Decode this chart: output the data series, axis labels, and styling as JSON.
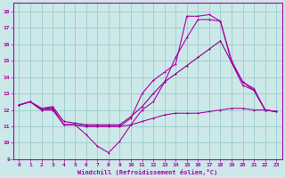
{
  "xlabel": "Windchill (Refroidissement éolien,°C)",
  "background_color": "#cce8e8",
  "line_color1": "#aa00aa",
  "line_color2": "#880088",
  "grid_color": "#99cccc",
  "x": [
    0,
    1,
    2,
    3,
    4,
    5,
    6,
    7,
    8,
    9,
    10,
    11,
    12,
    13,
    14,
    15,
    16,
    17,
    18,
    19,
    20,
    21,
    22,
    23
  ],
  "series1": [
    12.3,
    12.5,
    12.0,
    12.0,
    11.1,
    11.1,
    10.5,
    9.8,
    9.4,
    10.1,
    11.1,
    11.3,
    11.5,
    11.7,
    11.8,
    11.8,
    11.8,
    11.9,
    12.0,
    12.1,
    12.1,
    12.0,
    12.0,
    11.9
  ],
  "series2": [
    12.3,
    12.5,
    12.0,
    12.1,
    11.1,
    11.1,
    11.0,
    11.0,
    11.0,
    11.0,
    11.1,
    12.0,
    12.5,
    13.7,
    15.2,
    16.4,
    17.5,
    17.5,
    17.4,
    14.9,
    13.5,
    13.2,
    12.0,
    11.9
  ],
  "series3": [
    12.3,
    12.5,
    12.1,
    12.2,
    11.3,
    11.2,
    11.1,
    11.1,
    11.1,
    11.1,
    11.6,
    12.2,
    13.0,
    13.7,
    14.2,
    14.7,
    15.2,
    15.7,
    16.2,
    14.9,
    13.7,
    13.2,
    12.0,
    11.9
  ],
  "series4": [
    12.3,
    12.5,
    12.1,
    12.1,
    11.1,
    11.1,
    11.0,
    11.0,
    11.0,
    11.0,
    11.5,
    13.0,
    13.8,
    14.3,
    14.8,
    17.7,
    17.7,
    17.8,
    17.4,
    15.0,
    13.7,
    13.3,
    12.0,
    11.9
  ],
  "xlim": [
    -0.5,
    23.5
  ],
  "ylim": [
    9,
    18.5
  ],
  "yticks": [
    9,
    10,
    11,
    12,
    13,
    14,
    15,
    16,
    17,
    18
  ],
  "xticks": [
    0,
    1,
    2,
    3,
    4,
    5,
    6,
    7,
    8,
    9,
    10,
    11,
    12,
    13,
    14,
    15,
    16,
    17,
    18,
    19,
    20,
    21,
    22,
    23
  ]
}
